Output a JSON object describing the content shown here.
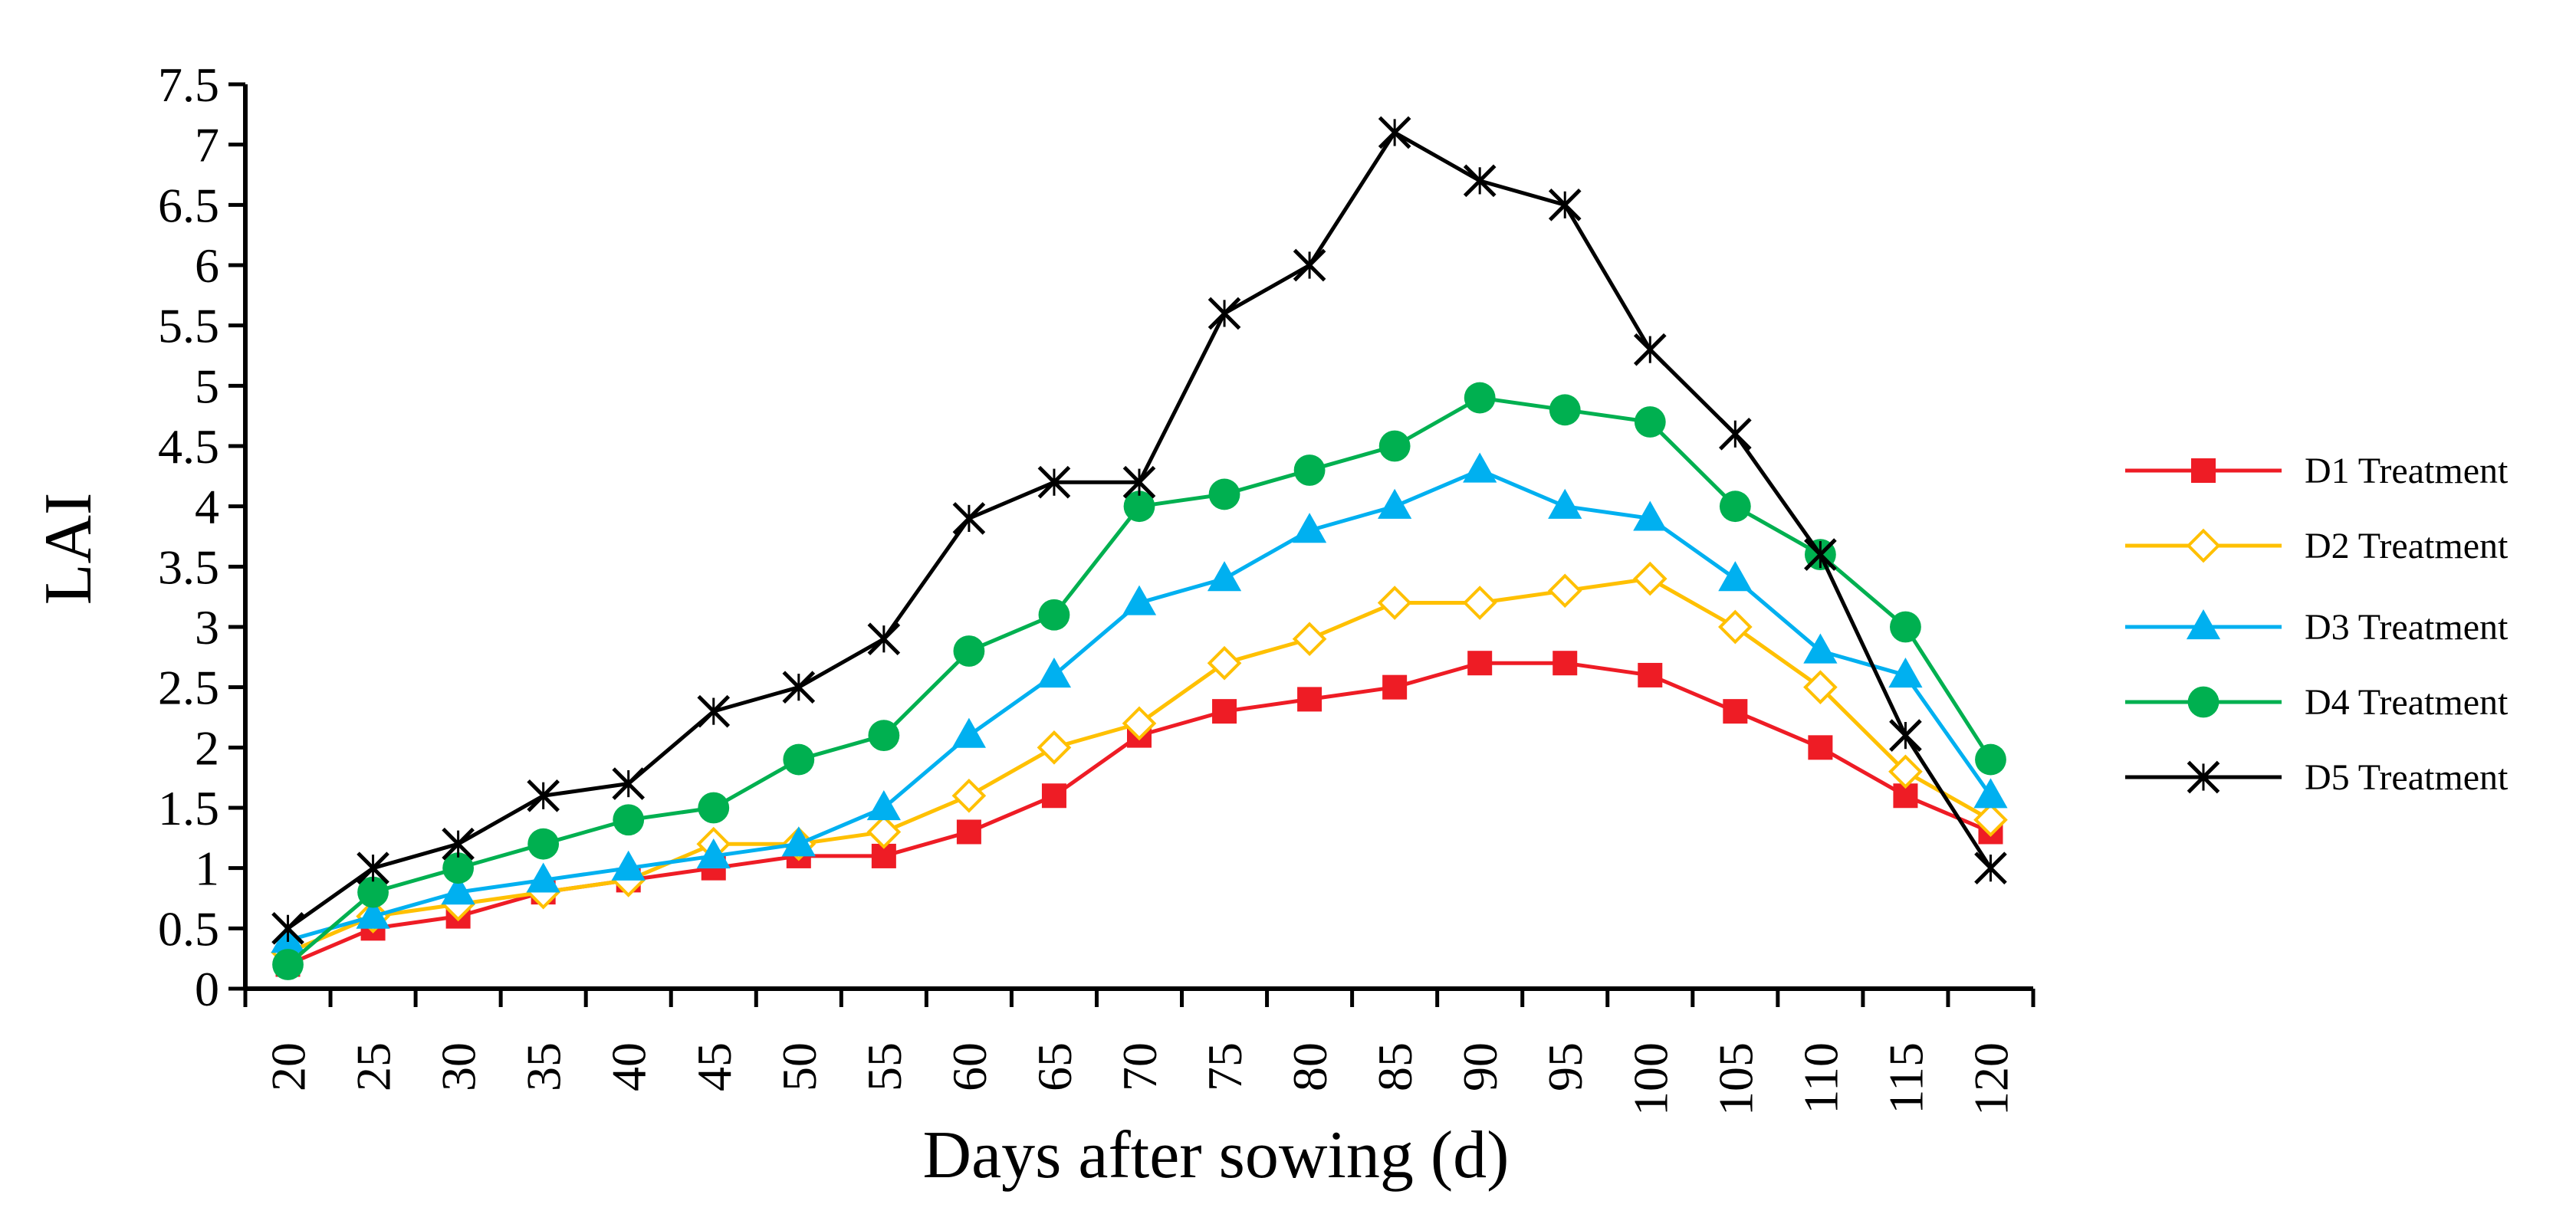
{
  "chart_data": {
    "type": "line",
    "title": "",
    "xlabel": "Days after sowing (d)",
    "ylabel": "LAI",
    "x": [
      20,
      25,
      30,
      35,
      40,
      45,
      50,
      55,
      60,
      65,
      70,
      75,
      80,
      85,
      90,
      95,
      100,
      105,
      110,
      115,
      120
    ],
    "x_tick_labels": [
      "20",
      "25",
      "30",
      "35",
      "40",
      "45",
      "50",
      "55",
      "60",
      "65",
      "70",
      "75",
      "80",
      "85",
      "90",
      "95",
      "100",
      "105",
      "110",
      "115",
      "120"
    ],
    "ylim": [
      0,
      7.5
    ],
    "y_ticks": [
      0,
      0.5,
      1,
      1.5,
      2,
      2.5,
      3,
      3.5,
      4,
      4.5,
      5,
      5.5,
      6,
      6.5,
      7,
      7.5
    ],
    "y_tick_labels": [
      "0",
      "0.5",
      "1",
      "1.5",
      "2",
      "2.5",
      "3",
      "3.5",
      "4",
      "4.5",
      "5",
      "5.5",
      "6",
      "6.5",
      "7",
      "7.5"
    ],
    "grid": false,
    "legend_position": "right",
    "series": [
      {
        "name": "D1 Treatment",
        "color": "#ee1c25",
        "marker": "square-filled",
        "values": [
          0.2,
          0.5,
          0.6,
          0.8,
          0.9,
          1.0,
          1.1,
          1.1,
          1.3,
          1.6,
          2.1,
          2.3,
          2.4,
          2.5,
          2.7,
          2.7,
          2.6,
          2.3,
          2.0,
          1.6,
          1.3
        ]
      },
      {
        "name": "D2 Treatment",
        "color": "#ffc000",
        "marker": "diamond-open",
        "values": [
          0.3,
          0.6,
          0.7,
          0.8,
          0.9,
          1.2,
          1.2,
          1.3,
          1.6,
          2.0,
          2.2,
          2.7,
          2.9,
          3.2,
          3.2,
          3.3,
          3.4,
          3.0,
          2.5,
          1.8,
          1.4
        ]
      },
      {
        "name": "D3 Treatment",
        "color": "#00b0f0",
        "marker": "triangle-filled",
        "values": [
          0.4,
          0.6,
          0.8,
          0.9,
          1.0,
          1.1,
          1.2,
          1.5,
          2.1,
          2.6,
          3.2,
          3.4,
          3.8,
          4.0,
          4.3,
          4.0,
          3.9,
          3.4,
          2.8,
          2.6,
          1.6
        ]
      },
      {
        "name": "D4 Treatment",
        "color": "#00b050",
        "marker": "circle-filled",
        "values": [
          0.2,
          0.8,
          1.0,
          1.2,
          1.4,
          1.5,
          1.9,
          2.1,
          2.8,
          3.1,
          4.0,
          4.1,
          4.3,
          4.5,
          4.9,
          4.8,
          4.7,
          4.0,
          3.6,
          3.0,
          1.9
        ]
      },
      {
        "name": "D5 Treatment",
        "color": "#000000",
        "marker": "asterisk",
        "values": [
          0.5,
          1.0,
          1.2,
          1.6,
          1.7,
          2.3,
          2.5,
          2.9,
          3.9,
          4.2,
          4.2,
          5.6,
          6.0,
          7.1,
          6.7,
          6.5,
          5.3,
          4.6,
          3.6,
          2.1,
          1.0
        ]
      }
    ]
  }
}
